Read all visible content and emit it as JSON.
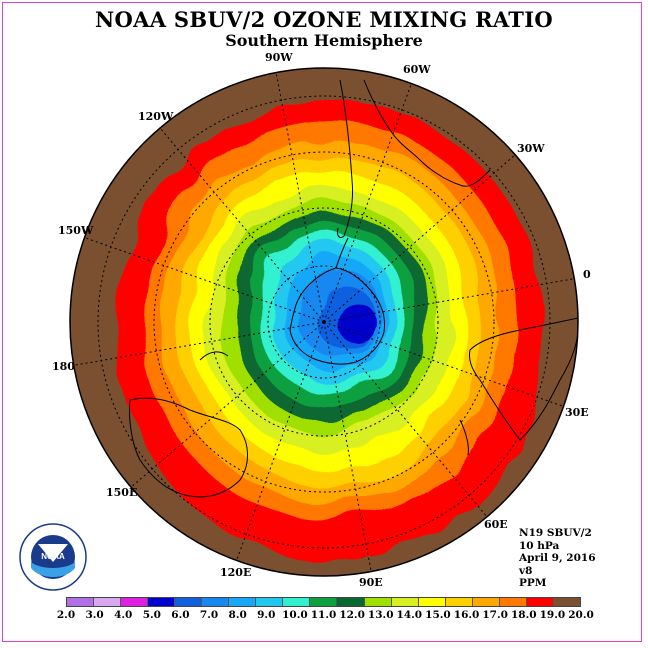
{
  "title": "NOAA SBUV/2 OZONE MIXING RATIO",
  "subtitle": "Southern Hemisphere",
  "longitude_labels": [
    "90W",
    "60W",
    "30W",
    "0",
    "30E",
    "60E",
    "90E",
    "120E",
    "150E",
    "180",
    "150W",
    "120W"
  ],
  "info": {
    "satellite": "N19 SBUV/2",
    "level": "10 hPa",
    "date": "April 9, 2016",
    "version": "v8",
    "units": "PPM"
  },
  "logo": {
    "text": "NOAA",
    "ring_text": "NATIONAL OCEANIC AND ATMOSPHERIC ADMINISTRATION · U.S. DEPARTMENT OF COMMERCE"
  },
  "colorbar": {
    "ticks": [
      "2.0",
      "3.0",
      "4.0",
      "5.0",
      "6.0",
      "7.0",
      "8.0",
      "9.0",
      "10.0",
      "11.0",
      "12.0",
      "13.0",
      "14.0",
      "15.0",
      "16.0",
      "17.0",
      "18.0",
      "19.0",
      "20.0"
    ],
    "colors": [
      "#b070e8",
      "#d8a8f0",
      "#e020e0",
      "#0000cc",
      "#1060e0",
      "#1888f0",
      "#18a8f8",
      "#20c8f0",
      "#30f0d0",
      "#10a040",
      "#086830",
      "#a0e000",
      "#d8f020",
      "#ffff00",
      "#ffd000",
      "#ffa800",
      "#ff7800",
      "#ff0000",
      "#7a5030"
    ]
  }
}
